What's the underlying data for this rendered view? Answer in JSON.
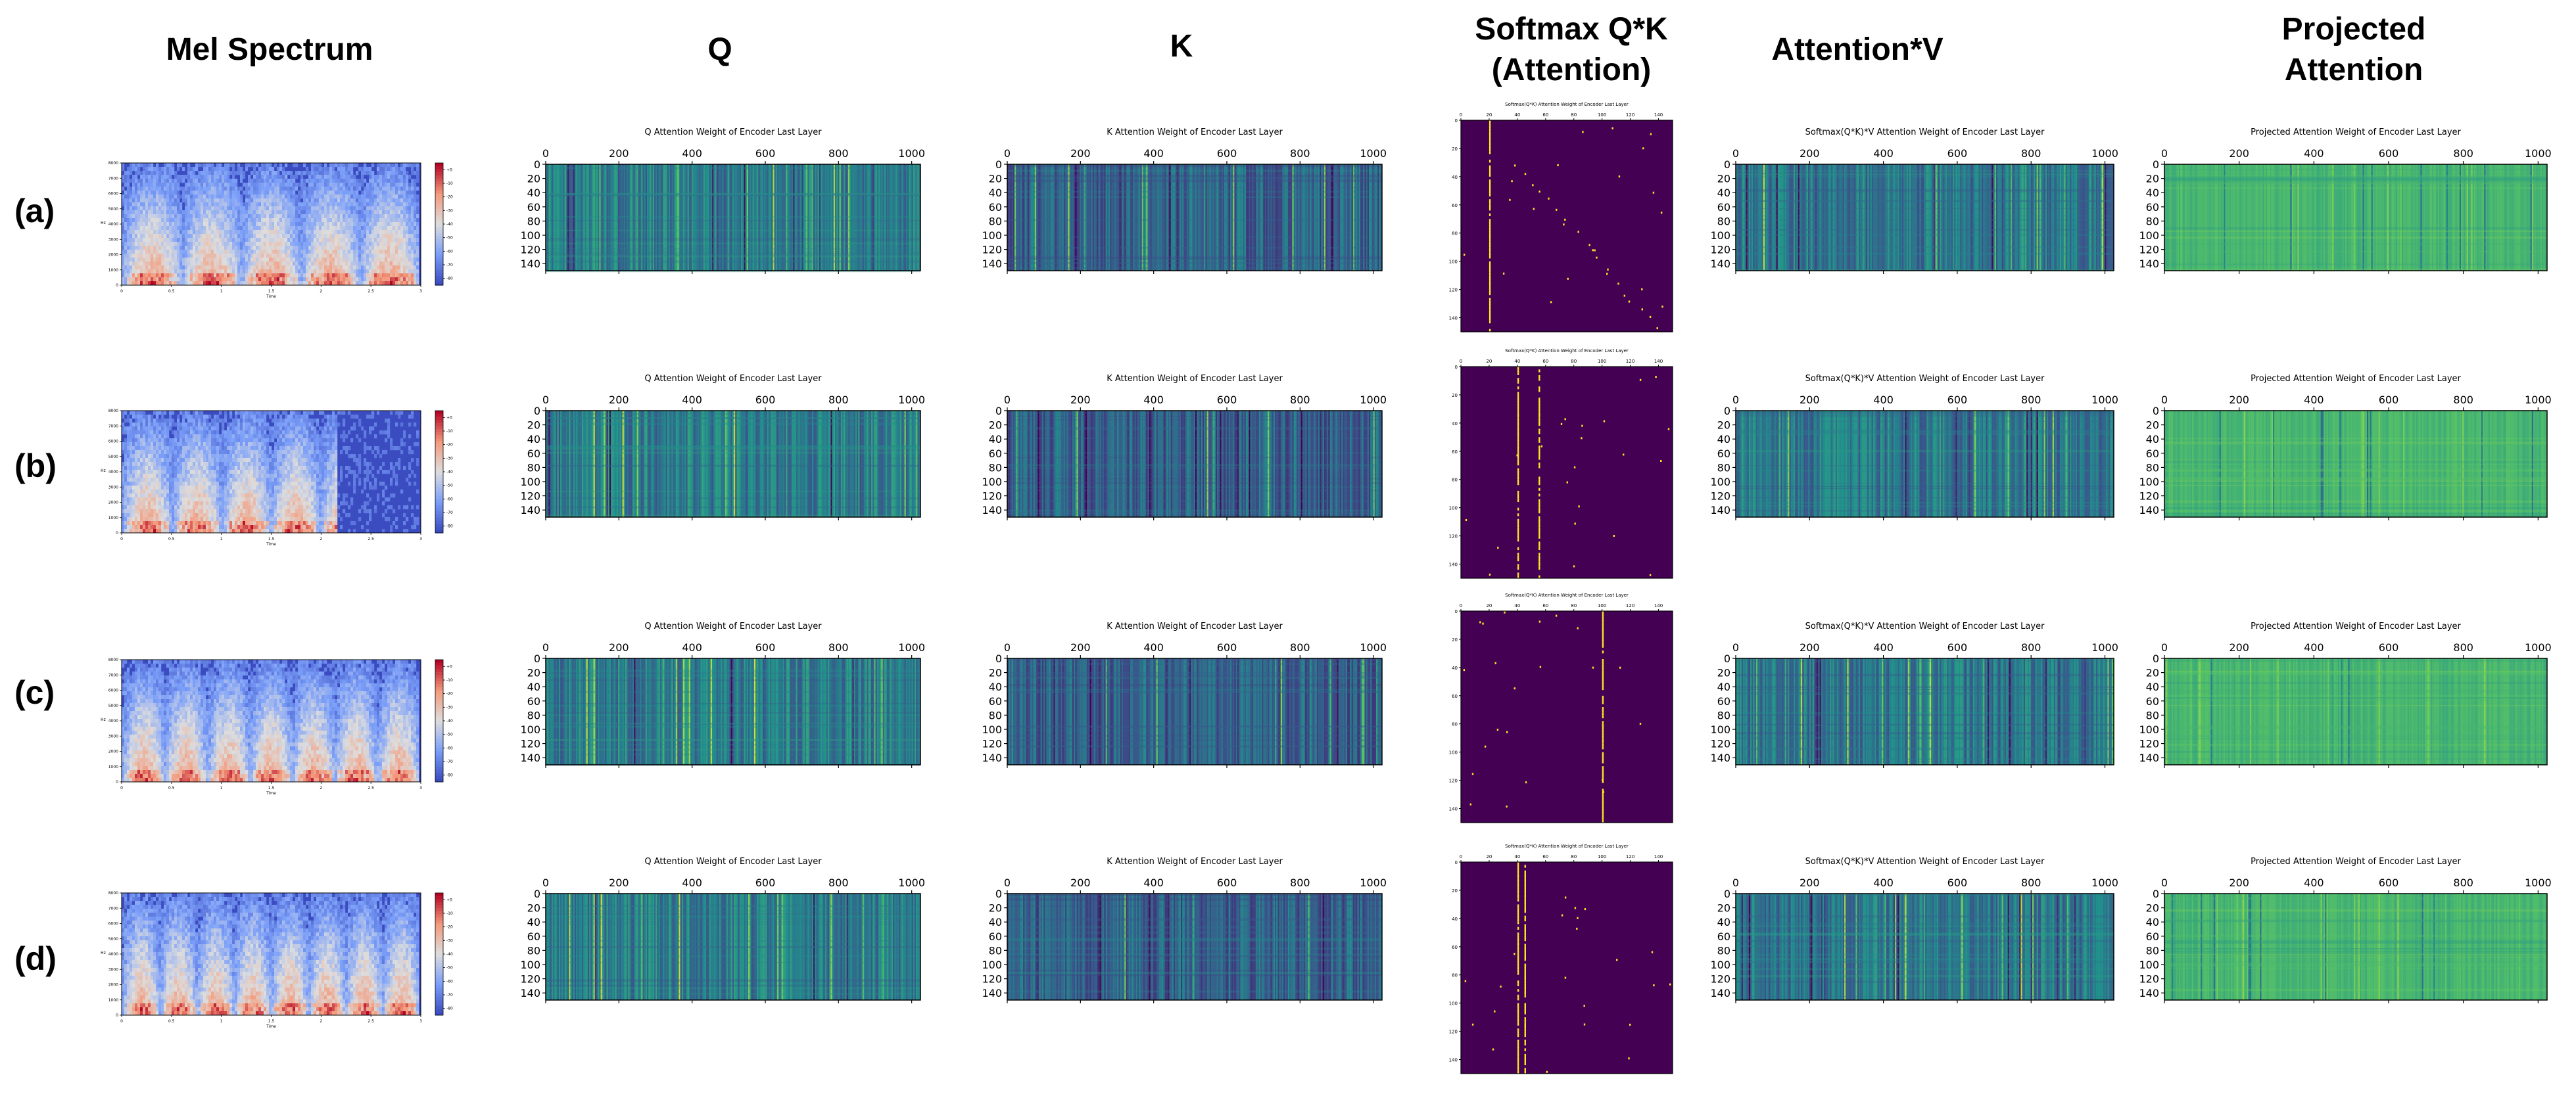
{
  "column_headers": {
    "mel": "Mel Spectrum",
    "q": "Q",
    "k": "K",
    "softmax_line1": "Softmax Q*K",
    "softmax_line2": "(Attention)",
    "attnv": "Attention*V",
    "projected_line1": "Projected",
    "projected_line2": "Attention"
  },
  "row_labels": [
    "(a)",
    "(b)",
    "(c)",
    "(d)"
  ],
  "colors": {
    "viridis_low": "#440154",
    "viridis_mid": "#21918c",
    "viridis_high": "#fde725",
    "coolwarm_low": "#3b4cc0",
    "coolwarm_mid": "#dddddd",
    "coolwarm_high": "#b40426"
  },
  "chart_data": [
    {
      "type": "heatmap",
      "panel": "mel-spectrum",
      "title": "",
      "xlabel": "Time",
      "ylabel": "Hz",
      "x_ticks": [
        "0",
        "0.5",
        "1",
        "1.5",
        "2",
        "2.5",
        "3"
      ],
      "y_ticks": [
        "0",
        "1000",
        "2000",
        "3000",
        "4000",
        "5000",
        "6000",
        "7000",
        "8000"
      ],
      "colorbar_ticks": [
        "+0",
        "-10",
        "-20",
        "-30",
        "-40",
        "-50",
        "-60",
        "-70",
        "-80"
      ],
      "colorbar_ticks_note": "row b colorbar shows -80 at the bottom; other rows as listed",
      "colormap": "coolwarm",
      "xlim": [
        0,
        3
      ],
      "ylim": [
        0,
        8000
      ]
    },
    {
      "type": "heatmap",
      "panel": "q",
      "title": "Q Attention Weight of Encoder Last Layer",
      "x_ticks": [
        "0",
        "200",
        "400",
        "600",
        "800",
        "1000"
      ],
      "y_ticks": [
        "0",
        "20",
        "40",
        "60",
        "80",
        "100",
        "120",
        "140"
      ],
      "xlim": [
        0,
        1024
      ],
      "ylim": [
        0,
        150
      ],
      "colormap": "viridis"
    },
    {
      "type": "heatmap",
      "panel": "k",
      "title": "K Attention Weight of Encoder Last Layer",
      "x_ticks": [
        "0",
        "200",
        "400",
        "600",
        "800",
        "1000"
      ],
      "y_ticks": [
        "0",
        "20",
        "40",
        "60",
        "80",
        "100",
        "120",
        "140"
      ],
      "xlim": [
        0,
        1024
      ],
      "ylim": [
        0,
        150
      ],
      "colormap": "viridis"
    },
    {
      "type": "heatmap",
      "panel": "softmax",
      "title": "Softmax(Q*K) Attention Weight of Encoder Last Layer",
      "x_ticks": [
        "0",
        "20",
        "40",
        "60",
        "80",
        "100",
        "120",
        "140"
      ],
      "y_ticks": [
        "0",
        "20",
        "40",
        "60",
        "80",
        "100",
        "120",
        "140"
      ],
      "xlim": [
        0,
        150
      ],
      "ylim": [
        0,
        150
      ],
      "colormap": "viridis",
      "vertical_stripes_x": [
        [
          20
        ],
        [
          40,
          55
        ],
        [
          100
        ],
        [
          40,
          45
        ]
      ]
    },
    {
      "type": "heatmap",
      "panel": "attnv",
      "title": "Softmax(Q*K)*V Attention Weight of Encoder Last Layer",
      "x_ticks": [
        "0",
        "200",
        "400",
        "600",
        "800",
        "1000"
      ],
      "y_ticks": [
        "0",
        "20",
        "40",
        "60",
        "80",
        "100",
        "120",
        "140"
      ],
      "xlim": [
        0,
        1024
      ],
      "ylim": [
        0,
        150
      ],
      "colormap": "viridis"
    },
    {
      "type": "heatmap",
      "panel": "projected",
      "title": "Projected Attention Weight of Encoder Last Layer",
      "x_ticks": [
        "0",
        "200",
        "400",
        "600",
        "800",
        "1000"
      ],
      "y_ticks": [
        "0",
        "20",
        "40",
        "60",
        "80",
        "100",
        "120",
        "140"
      ],
      "xlim": [
        0,
        1024
      ],
      "ylim": [
        0,
        150
      ],
      "colormap": "viridis"
    }
  ]
}
